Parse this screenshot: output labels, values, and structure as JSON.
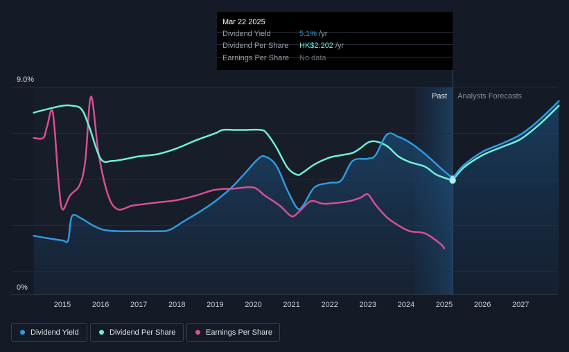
{
  "tooltip": {
    "date": "Mar 22 2025",
    "rows": [
      {
        "label": "Dividend Yield",
        "value": "5.1%",
        "suffix": " /yr",
        "color": "#2f9ae0"
      },
      {
        "label": "Dividend Per Share",
        "value": "HK$2.202",
        "suffix": " /yr",
        "color": "#6ff0d8"
      },
      {
        "label": "Earnings Per Share",
        "value": "No data",
        "suffix": "",
        "color": "#6b7280"
      }
    ]
  },
  "legend": [
    {
      "label": "Dividend Yield",
      "color": "#2f9ae0"
    },
    {
      "label": "Dividend Per Share",
      "color": "#6ff0d8"
    },
    {
      "label": "Earnings Per Share",
      "color": "#d94f96"
    }
  ],
  "chart_data": {
    "type": "line",
    "ylabel_top": "9.0%",
    "ylabel_bottom": "0%",
    "ylim": [
      0,
      9
    ],
    "xlim": [
      2014.25,
      2028.0
    ],
    "x_ticks": [
      "2015",
      "2016",
      "2017",
      "2018",
      "2019",
      "2020",
      "2021",
      "2022",
      "2023",
      "2024",
      "2025",
      "2026",
      "2027"
    ],
    "past_label": "Past",
    "forecast_label": "Analysts Forecasts",
    "past_boundary_x": 2025.22,
    "past_shade_start_x": 2024.22,
    "grid": true,
    "series": [
      {
        "name": "Dividend Yield",
        "color": "#2f9ae0",
        "area": true,
        "x": [
          2014.25,
          2014.6,
          2015.0,
          2015.15,
          2015.25,
          2015.5,
          2015.8,
          2016.1,
          2016.5,
          2017.0,
          2017.5,
          2017.8,
          2018.2,
          2018.6,
          2019.0,
          2019.4,
          2019.8,
          2020.1,
          2020.3,
          2020.6,
          2020.9,
          2021.15,
          2021.3,
          2021.6,
          2022.0,
          2022.3,
          2022.6,
          2023.0,
          2023.2,
          2023.5,
          2023.8,
          2024.1,
          2024.5,
          2024.9,
          2025.22
        ],
        "y": [
          2.55,
          2.45,
          2.35,
          2.35,
          3.4,
          3.3,
          3.0,
          2.8,
          2.75,
          2.75,
          2.75,
          2.8,
          3.2,
          3.6,
          4.05,
          4.6,
          5.3,
          5.85,
          6.0,
          5.6,
          4.5,
          3.75,
          3.85,
          4.65,
          4.85,
          4.95,
          5.8,
          5.9,
          6.05,
          6.95,
          6.85,
          6.6,
          6.1,
          5.5,
          5.05
        ]
      },
      {
        "name": "Dividend Yield forecast",
        "color": "#2f9ae0",
        "area": true,
        "x": [
          2025.22,
          2025.5,
          2026.0,
          2026.5,
          2027.0,
          2027.5,
          2028.0
        ],
        "y": [
          5.05,
          5.6,
          6.2,
          6.55,
          6.95,
          7.6,
          8.4
        ]
      },
      {
        "name": "Dividend Per Share",
        "color": "#6ff0d8",
        "x": [
          2014.25,
          2014.6,
          2015.0,
          2015.25,
          2015.5,
          2015.7,
          2016.0,
          2016.3,
          2016.7,
          2017.0,
          2017.5,
          2018.0,
          2018.5,
          2019.0,
          2019.2,
          2019.5,
          2019.8,
          2020.2,
          2020.35,
          2020.6,
          2020.9,
          2021.15,
          2021.3,
          2021.6,
          2022.0,
          2022.3,
          2022.6,
          2022.8,
          2023.0,
          2023.2,
          2023.5,
          2023.8,
          2024.1,
          2024.5,
          2024.8,
          2025.22
        ],
        "y": [
          7.9,
          8.05,
          8.2,
          8.2,
          8.05,
          7.3,
          5.9,
          5.8,
          5.9,
          6.0,
          6.1,
          6.35,
          6.7,
          7.0,
          7.15,
          7.15,
          7.15,
          7.15,
          7.0,
          6.4,
          5.5,
          5.2,
          5.3,
          5.65,
          5.95,
          6.05,
          6.15,
          6.35,
          6.6,
          6.65,
          6.45,
          6.0,
          5.75,
          5.55,
          5.2,
          4.95
        ]
      },
      {
        "name": "Dividend Per Share forecast",
        "color": "#6ff0d8",
        "x": [
          2025.22,
          2025.5,
          2026.0,
          2026.5,
          2027.0,
          2027.5,
          2028.0
        ],
        "y": [
          4.95,
          5.5,
          6.05,
          6.4,
          6.75,
          7.4,
          8.2
        ]
      },
      {
        "name": "Earnings Per Share",
        "color": "#d94f96",
        "x": [
          2014.25,
          2014.5,
          2014.6,
          2014.75,
          2014.9,
          2015.0,
          2015.2,
          2015.45,
          2015.6,
          2015.75,
          2015.95,
          2016.2,
          2016.45,
          2016.8,
          2017.0,
          2017.5,
          2018.0,
          2018.5,
          2019.0,
          2019.5,
          2020.0,
          2020.3,
          2020.7,
          2021.0,
          2021.2,
          2021.5,
          2021.8,
          2022.0,
          2022.5,
          2022.8,
          2023.0,
          2023.2,
          2023.5,
          2023.8,
          2024.1,
          2024.5,
          2024.9,
          2025.0
        ],
        "y": [
          6.8,
          6.8,
          7.3,
          7.9,
          4.9,
          3.7,
          4.3,
          4.75,
          5.8,
          8.6,
          6.1,
          4.3,
          3.7,
          3.85,
          3.9,
          4.0,
          4.1,
          4.3,
          4.55,
          4.6,
          4.65,
          4.3,
          3.85,
          3.4,
          3.6,
          4.05,
          3.95,
          3.95,
          4.05,
          4.2,
          4.35,
          3.9,
          3.35,
          3.0,
          2.75,
          2.65,
          2.2,
          2.0
        ]
      }
    ],
    "marker": {
      "x": 2025.22,
      "y_values": [
        5.05,
        4.95
      ]
    }
  }
}
